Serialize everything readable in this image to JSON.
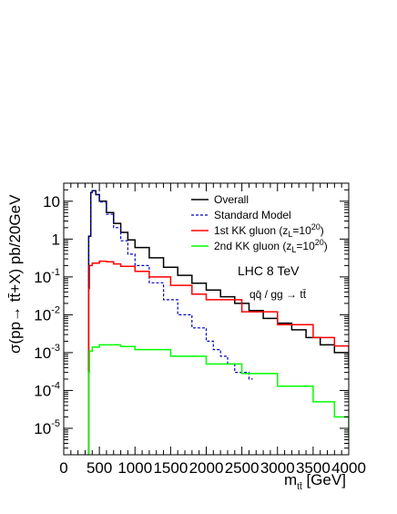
{
  "chart_data": {
    "type": "line",
    "xlabel_main": "m",
    "xlabel_sub": "tt̄",
    "xlabel_unit": " [GeV]",
    "ylabel": "σ(pp→ tt̄+X) pb/20GeV",
    "xlim": [
      0,
      4000
    ],
    "ylim": [
      2e-06,
      30
    ],
    "yscale": "log",
    "grid": false,
    "legend_position": "top-right",
    "x_tick_labels": [
      "0",
      "500",
      "1000",
      "1500",
      "2000",
      "2500",
      "3000",
      "3500",
      "4000"
    ],
    "y_tick_labels": [
      {
        "value": 10,
        "base": "10",
        "exp": ""
      },
      {
        "value": 1,
        "base": "1",
        "exp": ""
      },
      {
        "value": 0.1,
        "base": "10",
        "exp": "-1"
      },
      {
        "value": 0.01,
        "base": "10",
        "exp": "-2"
      },
      {
        "value": 0.001,
        "base": "10",
        "exp": "-3"
      },
      {
        "value": 0.0001,
        "base": "10",
        "exp": "-4"
      },
      {
        "value": 1e-05,
        "base": "10",
        "exp": "-5"
      }
    ],
    "annotations": {
      "energy": "LHC 8 TeV",
      "process": "qq̄ / gg → tt̄"
    },
    "series": [
      {
        "name": "Overall",
        "color": "#000000",
        "style": "solid",
        "x": [
          350,
          380,
          400,
          450,
          500,
          600,
          700,
          800,
          900,
          1000,
          1200,
          1400,
          1600,
          1800,
          2000,
          2200,
          2400,
          2600,
          2800,
          3000,
          3200,
          3400,
          3600,
          3800,
          4000
        ],
        "y": [
          1.2,
          17,
          19,
          15,
          10,
          5,
          2.6,
          1.5,
          0.95,
          0.6,
          0.32,
          0.18,
          0.11,
          0.068,
          0.045,
          0.03,
          0.02,
          0.013,
          0.008,
          0.006,
          0.004,
          0.0025,
          0.0016,
          0.001,
          0.0004
        ]
      },
      {
        "name": "Standard Model",
        "color": "#0000cc",
        "style": "dashed",
        "x": [
          350,
          380,
          400,
          450,
          500,
          600,
          700,
          800,
          900,
          1000,
          1200,
          1400,
          1600,
          1800,
          2000,
          2100,
          2200,
          2300,
          2400,
          2600
        ],
        "y": [
          1.2,
          17,
          19,
          15,
          9.5,
          4.5,
          2.0,
          0.9,
          0.4,
          0.2,
          0.07,
          0.025,
          0.01,
          0.0045,
          0.002,
          0.0012,
          0.0008,
          0.0005,
          0.0003,
          0.0002
        ]
      },
      {
        "name": "1st KK gluon (z_L=10^20)",
        "label_main": "1st KK gluon (z",
        "label_sub": "L",
        "label_mid": "=10",
        "label_sup": "20",
        "label_end": ")",
        "color": "#ff0000",
        "style": "solid",
        "x": [
          350,
          360,
          400,
          500,
          600,
          700,
          800,
          1000,
          1200,
          1500,
          1800,
          2000,
          2500,
          3000,
          3500,
          3800,
          4000
        ],
        "y": [
          0.05,
          0.2,
          0.23,
          0.26,
          0.25,
          0.22,
          0.19,
          0.14,
          0.1,
          0.06,
          0.035,
          0.025,
          0.012,
          0.0055,
          0.0025,
          0.0015,
          0.001
        ]
      },
      {
        "name": "2nd KK gluon (z_L=10^20)",
        "label_main": "2nd KK gluon (z",
        "label_sub": "L",
        "label_mid": "=10",
        "label_sup": "20",
        "label_end": ")",
        "color": "#00ff00",
        "style": "solid",
        "x": [
          350,
          360,
          400,
          500,
          600,
          800,
          1000,
          1500,
          2000,
          2500,
          3000,
          3500,
          3800,
          4000
        ],
        "y": [
          0.0003,
          0.0011,
          0.0014,
          0.0016,
          0.0016,
          0.00145,
          0.0012,
          0.0008,
          0.0005,
          0.00028,
          0.00013,
          5e-05,
          2e-05,
          6e-06
        ]
      }
    ]
  }
}
